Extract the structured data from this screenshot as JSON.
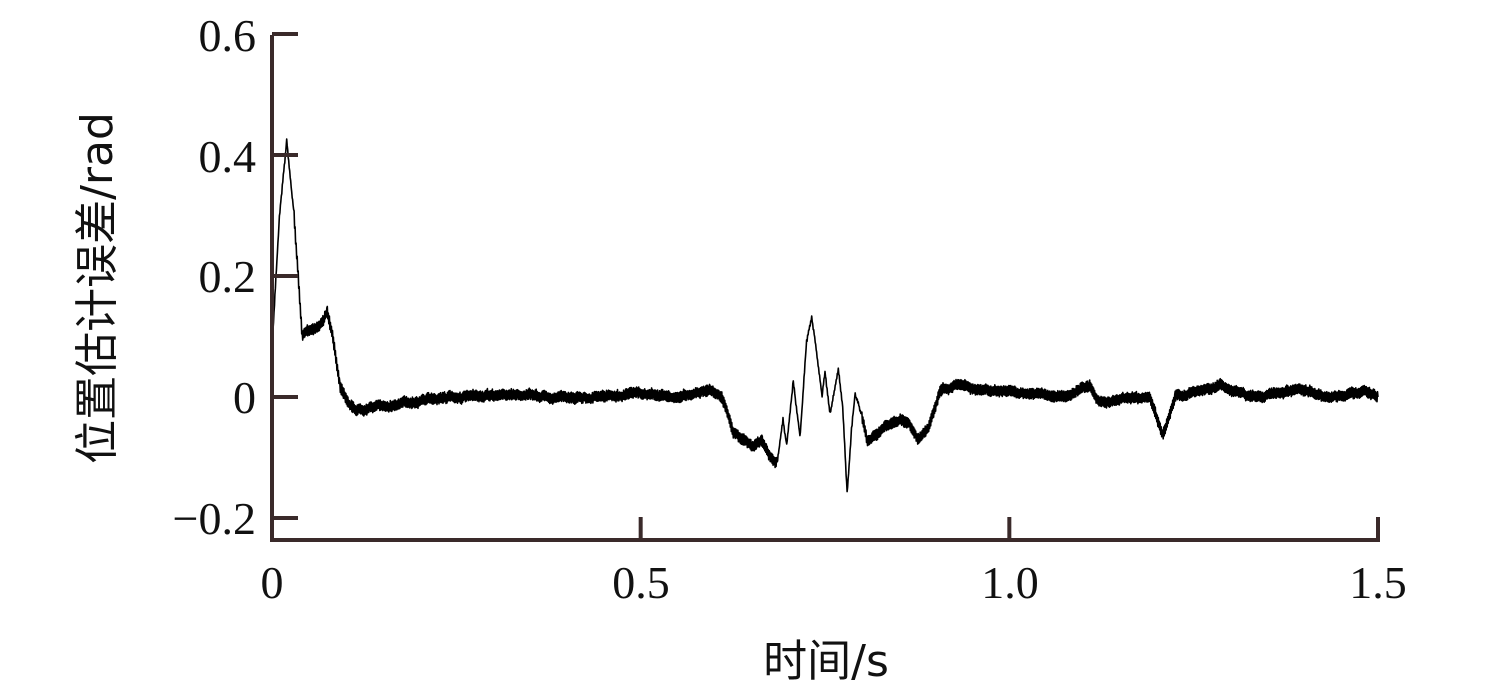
{
  "chart_data": {
    "type": "line",
    "title": "",
    "xlabel": "时间/s",
    "ylabel": "位置估计误差/rad",
    "xlim": [
      0,
      1.5
    ],
    "ylim": [
      -0.237,
      0.6
    ],
    "x_ticks": [
      "0",
      "0.5",
      "1.0",
      "1.5"
    ],
    "x_tick_values": [
      0,
      0.5,
      1.0,
      1.5
    ],
    "y_ticks": [
      "0.6",
      "0.4",
      "0.2",
      "0",
      "−0.2"
    ],
    "y_tick_values": [
      0.6,
      0.4,
      0.2,
      0,
      -0.2
    ],
    "grid": false,
    "line_color": "#000000",
    "axis_color": "#3a2a2a",
    "series": [
      {
        "x": [
          0,
          0.01,
          0.02,
          0.03,
          0.041,
          0.05,
          0.065,
          0.075,
          0.082,
          0.092,
          0.105,
          0.113,
          0.14,
          0.17,
          0.2,
          0.24,
          0.28,
          0.33,
          0.38,
          0.44,
          0.5,
          0.55,
          0.58,
          0.594,
          0.61,
          0.625,
          0.64,
          0.652,
          0.665,
          0.675,
          0.685,
          0.693,
          0.698,
          0.707,
          0.716,
          0.725,
          0.732,
          0.74,
          0.746,
          0.75,
          0.757,
          0.768,
          0.774,
          0.78,
          0.786,
          0.791,
          0.8,
          0.807,
          0.83,
          0.852,
          0.865,
          0.875,
          0.89,
          0.906,
          0.933,
          0.96,
          0.987,
          1.04,
          1.08,
          1.109,
          1.123,
          1.16,
          1.19,
          1.208,
          1.225,
          1.26,
          1.286,
          1.326,
          1.36,
          1.394,
          1.44,
          1.48,
          1.5
        ],
        "y": [
          0.08,
          0.3,
          0.425,
          0.3,
          0.1,
          0.11,
          0.12,
          0.14,
          0.1,
          0.02,
          -0.01,
          -0.02,
          -0.015,
          -0.012,
          -0.005,
          0.0,
          0.0,
          0.005,
          0.0,
          0.0,
          0.005,
          0.0,
          0.01,
          0.012,
          0.0,
          -0.055,
          -0.07,
          -0.083,
          -0.07,
          -0.1,
          -0.11,
          -0.038,
          -0.08,
          0.028,
          -0.066,
          0.09,
          0.132,
          0.06,
          0.0,
          0.04,
          -0.03,
          0.045,
          -0.02,
          -0.159,
          -0.05,
          0.007,
          -0.03,
          -0.071,
          -0.05,
          -0.038,
          -0.05,
          -0.071,
          -0.05,
          0.012,
          0.023,
          0.01,
          0.01,
          0.005,
          0.0,
          0.02,
          -0.01,
          0.0,
          0.0,
          -0.063,
          0.0,
          0.01,
          0.02,
          0.0,
          0.005,
          0.01,
          0.0,
          0.01,
          0.0
        ]
      }
    ]
  }
}
